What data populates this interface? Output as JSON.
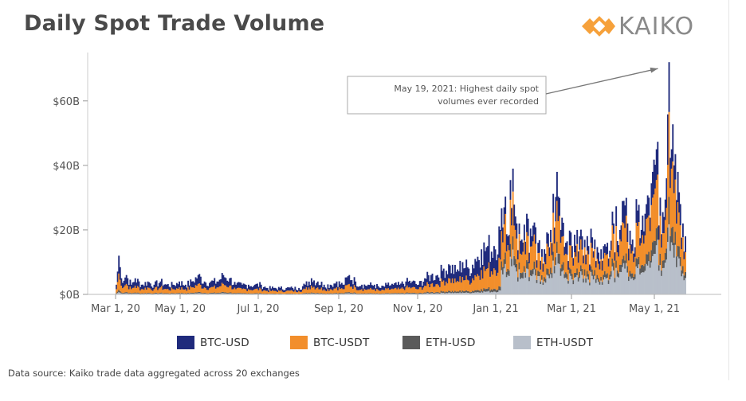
{
  "header": {
    "title": "Daily Spot Trade Volume",
    "logo_text": "KAIKO",
    "logo_color": "#f6a13b"
  },
  "chart_data": {
    "type": "area",
    "stacked": true,
    "title": "Daily Spot Trade Volume",
    "xlabel": "",
    "ylabel": "",
    "ylim": [
      0,
      75
    ],
    "y_unit": "billion USD",
    "y_ticks": [
      {
        "value": 0,
        "label": "$0B"
      },
      {
        "value": 20,
        "label": "$20B"
      },
      {
        "value": 40,
        "label": "$40B"
      },
      {
        "value": 60,
        "label": "$60B"
      }
    ],
    "x_ticks": [
      "Mar 1, 20",
      "May 1, 20",
      "Jul 1, 20",
      "Sep 1, 20",
      "Nov 1, 20",
      "Jan 1, 21",
      "Mar 1, 21",
      "May 1, 21"
    ],
    "x_range": [
      "Mar 1, 20",
      "May 31, 21"
    ],
    "x_values_note": "x values are days since Mar 1, 2020",
    "points": [
      {
        "day": 0,
        "total": 3
      },
      {
        "day": 2,
        "total": 12
      },
      {
        "day": 4,
        "total": 5
      },
      {
        "day": 8,
        "total": 6
      },
      {
        "day": 12,
        "total": 3
      },
      {
        "day": 15,
        "total": 5
      },
      {
        "day": 20,
        "total": 3
      },
      {
        "day": 25,
        "total": 4
      },
      {
        "day": 30,
        "total": 3
      },
      {
        "day": 35,
        "total": 4
      },
      {
        "day": 40,
        "total": 3
      },
      {
        "day": 45,
        "total": 3
      },
      {
        "day": 50,
        "total": 4
      },
      {
        "day": 55,
        "total": 3
      },
      {
        "day": 60,
        "total": 4
      },
      {
        "day": 65,
        "total": 6
      },
      {
        "day": 70,
        "total": 4
      },
      {
        "day": 75,
        "total": 4
      },
      {
        "day": 80,
        "total": 4
      },
      {
        "day": 85,
        "total": 6
      },
      {
        "day": 90,
        "total": 5
      },
      {
        "day": 95,
        "total": 3
      },
      {
        "day": 100,
        "total": 3
      },
      {
        "day": 105,
        "total": 3
      },
      {
        "day": 110,
        "total": 3
      },
      {
        "day": 115,
        "total": 3
      },
      {
        "day": 120,
        "total": 2
      },
      {
        "day": 125,
        "total": 2
      },
      {
        "day": 130,
        "total": 2
      },
      {
        "day": 135,
        "total": 2
      },
      {
        "day": 140,
        "total": 2
      },
      {
        "day": 145,
        "total": 2
      },
      {
        "day": 150,
        "total": 3
      },
      {
        "day": 155,
        "total": 5
      },
      {
        "day": 160,
        "total": 4
      },
      {
        "day": 165,
        "total": 3
      },
      {
        "day": 170,
        "total": 3
      },
      {
        "day": 175,
        "total": 4
      },
      {
        "day": 180,
        "total": 3
      },
      {
        "day": 185,
        "total": 6
      },
      {
        "day": 190,
        "total": 4
      },
      {
        "day": 195,
        "total": 3
      },
      {
        "day": 200,
        "total": 3
      },
      {
        "day": 205,
        "total": 3
      },
      {
        "day": 210,
        "total": 2
      },
      {
        "day": 215,
        "total": 3
      },
      {
        "day": 220,
        "total": 3
      },
      {
        "day": 225,
        "total": 3
      },
      {
        "day": 230,
        "total": 4
      },
      {
        "day": 235,
        "total": 4
      },
      {
        "day": 240,
        "total": 3
      },
      {
        "day": 245,
        "total": 5
      },
      {
        "day": 250,
        "total": 6
      },
      {
        "day": 255,
        "total": 6
      },
      {
        "day": 260,
        "total": 8
      },
      {
        "day": 265,
        "total": 9
      },
      {
        "day": 270,
        "total": 7
      },
      {
        "day": 275,
        "total": 10
      },
      {
        "day": 280,
        "total": 8
      },
      {
        "day": 285,
        "total": 11
      },
      {
        "day": 290,
        "total": 14
      },
      {
        "day": 295,
        "total": 15
      },
      {
        "day": 300,
        "total": 15
      },
      {
        "day": 305,
        "total": 20
      },
      {
        "day": 308,
        "total": 27
      },
      {
        "day": 311,
        "total": 18
      },
      {
        "day": 315,
        "total": 39
      },
      {
        "day": 318,
        "total": 22
      },
      {
        "day": 322,
        "total": 17
      },
      {
        "day": 326,
        "total": 25
      },
      {
        "day": 330,
        "total": 18
      },
      {
        "day": 335,
        "total": 16
      },
      {
        "day": 340,
        "total": 14
      },
      {
        "day": 345,
        "total": 20
      },
      {
        "day": 350,
        "total": 38
      },
      {
        "day": 353,
        "total": 20
      },
      {
        "day": 357,
        "total": 16
      },
      {
        "day": 362,
        "total": 15
      },
      {
        "day": 366,
        "total": 20
      },
      {
        "day": 370,
        "total": 18
      },
      {
        "day": 375,
        "total": 15
      },
      {
        "day": 380,
        "total": 17
      },
      {
        "day": 385,
        "total": 14
      },
      {
        "day": 390,
        "total": 16
      },
      {
        "day": 395,
        "total": 22
      },
      {
        "day": 400,
        "total": 20
      },
      {
        "day": 403,
        "total": 29
      },
      {
        "day": 406,
        "total": 22
      },
      {
        "day": 410,
        "total": 17
      },
      {
        "day": 414,
        "total": 26
      },
      {
        "day": 417,
        "total": 20
      },
      {
        "day": 420,
        "total": 25
      },
      {
        "day": 423,
        "total": 30
      },
      {
        "day": 426,
        "total": 38
      },
      {
        "day": 429,
        "total": 45
      },
      {
        "day": 432,
        "total": 30
      },
      {
        "day": 435,
        "total": 24
      },
      {
        "day": 437,
        "total": 36
      },
      {
        "day": 439,
        "total": 72
      },
      {
        "day": 441,
        "total": 45
      },
      {
        "day": 443,
        "total": 40
      },
      {
        "day": 446,
        "total": 38
      },
      {
        "day": 448,
        "total": 28
      },
      {
        "day": 450,
        "total": 22
      },
      {
        "day": 452,
        "total": 18
      }
    ],
    "series": [
      {
        "name": "BTC-USD",
        "color": "#1f2a7c"
      },
      {
        "name": "BTC-USDT",
        "color": "#f28e2b"
      },
      {
        "name": "ETH-USD",
        "color": "#5a5a5a"
      },
      {
        "name": "ETH-USDT",
        "color": "#b8bfca"
      }
    ],
    "annotation": {
      "lines": [
        "May 19, 2021: Highest daily spot",
        "volumes ever recorded"
      ],
      "target_day": 439,
      "target_value": 72
    }
  },
  "footer": {
    "source": "Data source: Kaiko trade data aggregated across 20 exchanges"
  }
}
